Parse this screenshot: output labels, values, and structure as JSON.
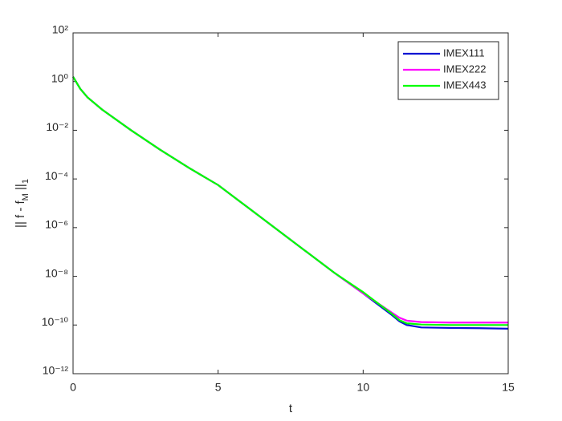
{
  "chart_data": {
    "type": "line",
    "xlabel": "t",
    "ylabel": "|| f - f_M ||_1",
    "x": [
      0,
      0.25,
      0.5,
      1,
      2,
      3,
      4,
      5,
      6,
      7,
      8,
      9,
      10,
      10.5,
      11,
      11.25,
      11.5,
      12,
      13,
      14,
      15
    ],
    "series": [
      {
        "name": "IMEX111",
        "color": "#0a14d2",
        "values": [
          1.585,
          0.5012,
          0.2239,
          0.07079,
          0.01,
          0.001585,
          0.0002818,
          5.623e-05,
          7.079e-06,
          8.913e-07,
          1.122e-07,
          1.413e-08,
          1.995e-09,
          7.079e-10,
          2.512e-10,
          1.413e-10,
          1e-10,
          7.943e-11,
          7.586e-11,
          7.413e-11,
          7.079e-11
        ]
      },
      {
        "name": "IMEX222",
        "color": "#ff00ff",
        "values": [
          1.585,
          0.5012,
          0.2239,
          0.07079,
          0.01,
          0.001585,
          0.0002818,
          5.623e-05,
          7.079e-06,
          8.913e-07,
          1.122e-07,
          1.413e-08,
          1.995e-09,
          7.943e-10,
          3.162e-10,
          1.995e-10,
          1.514e-10,
          1.318e-10,
          1.259e-10,
          1.259e-10,
          1.259e-10
        ]
      },
      {
        "name": "IMEX443",
        "color": "#00ff00",
        "values": [
          1.585,
          0.5012,
          0.2239,
          0.07079,
          0.01,
          0.001585,
          0.0002818,
          5.623e-05,
          7.079e-06,
          8.913e-07,
          1.122e-07,
          1.413e-08,
          2.239e-09,
          7.943e-10,
          2.818e-10,
          1.585e-10,
          1.175e-10,
          1.047e-10,
          1e-10,
          1e-10,
          1e-10
        ]
      }
    ],
    "xlim": [
      0,
      15
    ],
    "xticks": [
      0,
      5,
      10,
      15
    ],
    "ylim": [
      1e-12,
      100
    ],
    "yscale": "log",
    "yticks": [
      {
        "value": 1e-12,
        "label": "10⁻¹²"
      },
      {
        "value": 1e-10,
        "label": "10⁻¹⁰"
      },
      {
        "value": 1e-08,
        "label": "10⁻⁸"
      },
      {
        "value": 1e-06,
        "label": "10⁻⁶"
      },
      {
        "value": 0.0001,
        "label": "10⁻⁴"
      },
      {
        "value": 0.01,
        "label": "10⁻²"
      },
      {
        "value": 1,
        "label": "10⁰"
      },
      {
        "value": 100,
        "label": "10²"
      }
    ],
    "grid": false,
    "legend": "top-right"
  }
}
